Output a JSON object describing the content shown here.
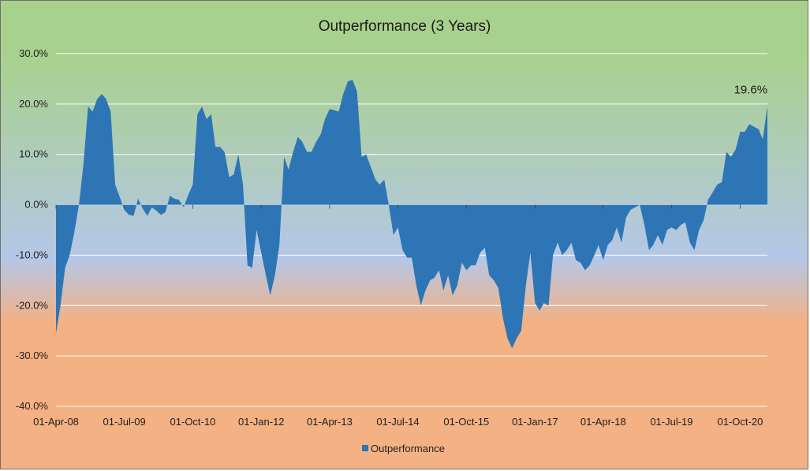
{
  "chart_data": {
    "type": "area",
    "title": "Outperformance (3 Years)",
    "xlabel": "",
    "ylabel": "",
    "ylim": [
      -0.4,
      0.3
    ],
    "y_ticks": [
      0.3,
      0.2,
      0.1,
      0.0,
      -0.1,
      -0.2,
      -0.3,
      -0.4
    ],
    "y_tick_labels": [
      "30.0%",
      "20.0%",
      "10.0%",
      "0.0%",
      "-10.0%",
      "-20.0%",
      "-30.0%",
      "-40.0%"
    ],
    "x_range": [
      "2008-04-01",
      "2021-04-01"
    ],
    "x_ticks": [
      "2008-04-01",
      "2009-07-01",
      "2010-10-01",
      "2012-01-01",
      "2013-04-01",
      "2014-07-01",
      "2015-10-01",
      "2017-01-01",
      "2018-04-01",
      "2019-07-01",
      "2020-10-01"
    ],
    "x_tick_labels": [
      "01-Apr-08",
      "01-Jul-09",
      "01-Oct-10",
      "01-Jan-12",
      "01-Apr-13",
      "01-Jul-14",
      "01-Oct-15",
      "01-Jan-17",
      "01-Apr-18",
      "01-Jul-19",
      "01-Oct-20"
    ],
    "grid": "horizontal",
    "legend": {
      "position": "bottom",
      "entries": [
        "Outperformance"
      ]
    },
    "colors": {
      "series": "#2e75b6",
      "bg_top": "#a9d18e",
      "bg_mid": "#b4c7e7",
      "bg_bottom": "#f4b183",
      "grid": "#ffffff"
    },
    "annotation": {
      "text": "19.6%",
      "x": "2021-03-01",
      "y": 0.196
    },
    "series": [
      {
        "name": "Outperformance",
        "points": [
          [
            "2008-04-01",
            -0.255
          ],
          [
            "2008-05-01",
            -0.2
          ],
          [
            "2008-06-01",
            -0.125
          ],
          [
            "2008-07-01",
            -0.1
          ],
          [
            "2008-08-01",
            -0.055
          ],
          [
            "2008-09-01",
            0.0
          ],
          [
            "2008-10-01",
            0.08
          ],
          [
            "2008-11-01",
            0.195
          ],
          [
            "2008-12-01",
            0.185
          ],
          [
            "2009-01-01",
            0.21
          ],
          [
            "2009-02-01",
            0.22
          ],
          [
            "2009-03-01",
            0.21
          ],
          [
            "2009-04-01",
            0.185
          ],
          [
            "2009-05-01",
            0.04
          ],
          [
            "2009-06-01",
            0.015
          ],
          [
            "2009-07-01",
            -0.01
          ],
          [
            "2009-08-01",
            -0.02
          ],
          [
            "2009-09-01",
            -0.022
          ],
          [
            "2009-10-01",
            0.012
          ],
          [
            "2009-11-01",
            -0.008
          ],
          [
            "2009-12-01",
            -0.022
          ],
          [
            "2010-01-01",
            -0.005
          ],
          [
            "2010-02-01",
            -0.012
          ],
          [
            "2010-03-01",
            -0.02
          ],
          [
            "2010-04-01",
            -0.015
          ],
          [
            "2010-05-01",
            0.018
          ],
          [
            "2010-06-01",
            0.012
          ],
          [
            "2010-07-01",
            0.01
          ],
          [
            "2010-08-01",
            -0.005
          ],
          [
            "2010-09-01",
            0.02
          ],
          [
            "2010-10-01",
            0.04
          ],
          [
            "2010-11-01",
            0.18
          ],
          [
            "2010-12-01",
            0.195
          ],
          [
            "2011-01-01",
            0.17
          ],
          [
            "2011-02-01",
            0.18
          ],
          [
            "2011-03-01",
            0.115
          ],
          [
            "2011-04-01",
            0.115
          ],
          [
            "2011-05-01",
            0.105
          ],
          [
            "2011-06-01",
            0.055
          ],
          [
            "2011-07-01",
            0.06
          ],
          [
            "2011-08-01",
            0.1
          ],
          [
            "2011-09-01",
            0.04
          ],
          [
            "2011-10-01",
            -0.12
          ],
          [
            "2011-11-01",
            -0.125
          ],
          [
            "2011-12-01",
            -0.05
          ],
          [
            "2012-01-01",
            -0.095
          ],
          [
            "2012-02-01",
            -0.14
          ],
          [
            "2012-03-01",
            -0.18
          ],
          [
            "2012-04-01",
            -0.14
          ],
          [
            "2012-05-01",
            -0.08
          ],
          [
            "2012-06-01",
            0.095
          ],
          [
            "2012-07-01",
            0.07
          ],
          [
            "2012-08-01",
            0.105
          ],
          [
            "2012-09-01",
            0.135
          ],
          [
            "2012-10-01",
            0.125
          ],
          [
            "2012-11-01",
            0.105
          ],
          [
            "2012-12-01",
            0.105
          ],
          [
            "2013-01-01",
            0.125
          ],
          [
            "2013-02-01",
            0.14
          ],
          [
            "2013-03-01",
            0.17
          ],
          [
            "2013-04-01",
            0.19
          ],
          [
            "2013-05-01",
            0.188
          ],
          [
            "2013-06-01",
            0.185
          ],
          [
            "2013-07-01",
            0.22
          ],
          [
            "2013-08-01",
            0.245
          ],
          [
            "2013-09-01",
            0.248
          ],
          [
            "2013-10-01",
            0.225
          ],
          [
            "2013-11-01",
            0.095
          ],
          [
            "2013-12-01",
            0.1
          ],
          [
            "2014-01-01",
            0.075
          ],
          [
            "2014-02-01",
            0.05
          ],
          [
            "2014-03-01",
            0.04
          ],
          [
            "2014-04-01",
            0.05
          ],
          [
            "2014-05-01",
            0.0
          ],
          [
            "2014-06-01",
            -0.06
          ],
          [
            "2014-07-01",
            -0.045
          ],
          [
            "2014-08-01",
            -0.09
          ],
          [
            "2014-09-01",
            -0.105
          ],
          [
            "2014-10-01",
            -0.105
          ],
          [
            "2014-11-01",
            -0.16
          ],
          [
            "2014-12-01",
            -0.2
          ],
          [
            "2015-01-01",
            -0.17
          ],
          [
            "2015-02-01",
            -0.15
          ],
          [
            "2015-03-01",
            -0.145
          ],
          [
            "2015-04-01",
            -0.13
          ],
          [
            "2015-05-01",
            -0.17
          ],
          [
            "2015-06-01",
            -0.14
          ],
          [
            "2015-07-01",
            -0.18
          ],
          [
            "2015-08-01",
            -0.16
          ],
          [
            "2015-09-01",
            -0.115
          ],
          [
            "2015-10-01",
            -0.13
          ],
          [
            "2015-11-01",
            -0.12
          ],
          [
            "2015-12-01",
            -0.12
          ],
          [
            "2016-01-01",
            -0.095
          ],
          [
            "2016-02-01",
            -0.085
          ],
          [
            "2016-03-01",
            -0.14
          ],
          [
            "2016-04-01",
            -0.15
          ],
          [
            "2016-05-01",
            -0.165
          ],
          [
            "2016-06-01",
            -0.225
          ],
          [
            "2016-07-01",
            -0.265
          ],
          [
            "2016-08-01",
            -0.285
          ],
          [
            "2016-09-01",
            -0.265
          ],
          [
            "2016-10-01",
            -0.25
          ],
          [
            "2016-11-01",
            -0.16
          ],
          [
            "2016-12-01",
            -0.095
          ],
          [
            "2017-01-01",
            -0.195
          ],
          [
            "2017-02-01",
            -0.21
          ],
          [
            "2017-03-01",
            -0.195
          ],
          [
            "2017-04-01",
            -0.2
          ],
          [
            "2017-05-01",
            -0.1
          ],
          [
            "2017-06-01",
            -0.075
          ],
          [
            "2017-07-01",
            -0.1
          ],
          [
            "2017-08-01",
            -0.09
          ],
          [
            "2017-09-01",
            -0.075
          ],
          [
            "2017-10-01",
            -0.11
          ],
          [
            "2017-11-01",
            -0.115
          ],
          [
            "2017-12-01",
            -0.13
          ],
          [
            "2018-01-01",
            -0.12
          ],
          [
            "2018-02-01",
            -0.1
          ],
          [
            "2018-03-01",
            -0.08
          ],
          [
            "2018-04-01",
            -0.11
          ],
          [
            "2018-05-01",
            -0.08
          ],
          [
            "2018-06-01",
            -0.07
          ],
          [
            "2018-07-01",
            -0.045
          ],
          [
            "2018-08-01",
            -0.075
          ],
          [
            "2018-09-01",
            -0.025
          ],
          [
            "2018-10-01",
            -0.01
          ],
          [
            "2018-11-01",
            -0.005
          ],
          [
            "2018-12-01",
            0.0
          ],
          [
            "2019-01-01",
            -0.04
          ],
          [
            "2019-02-01",
            -0.09
          ],
          [
            "2019-03-01",
            -0.08
          ],
          [
            "2019-04-01",
            -0.06
          ],
          [
            "2019-05-01",
            -0.08
          ],
          [
            "2019-06-01",
            -0.05
          ],
          [
            "2019-07-01",
            -0.045
          ],
          [
            "2019-08-01",
            -0.05
          ],
          [
            "2019-09-01",
            -0.04
          ],
          [
            "2019-10-01",
            -0.035
          ],
          [
            "2019-11-01",
            -0.075
          ],
          [
            "2019-12-01",
            -0.09
          ],
          [
            "2020-01-01",
            -0.05
          ],
          [
            "2020-02-01",
            -0.03
          ],
          [
            "2020-03-01",
            0.01
          ],
          [
            "2020-04-01",
            0.025
          ],
          [
            "2020-05-01",
            0.04
          ],
          [
            "2020-06-01",
            0.045
          ],
          [
            "2020-07-01",
            0.105
          ],
          [
            "2020-08-01",
            0.095
          ],
          [
            "2020-09-01",
            0.11
          ],
          [
            "2020-10-01",
            0.145
          ],
          [
            "2020-11-01",
            0.145
          ],
          [
            "2020-12-01",
            0.16
          ],
          [
            "2021-01-01",
            0.155
          ],
          [
            "2021-02-01",
            0.15
          ],
          [
            "2021-03-01",
            0.13
          ],
          [
            "2021-04-01",
            0.196
          ]
        ]
      }
    ]
  }
}
